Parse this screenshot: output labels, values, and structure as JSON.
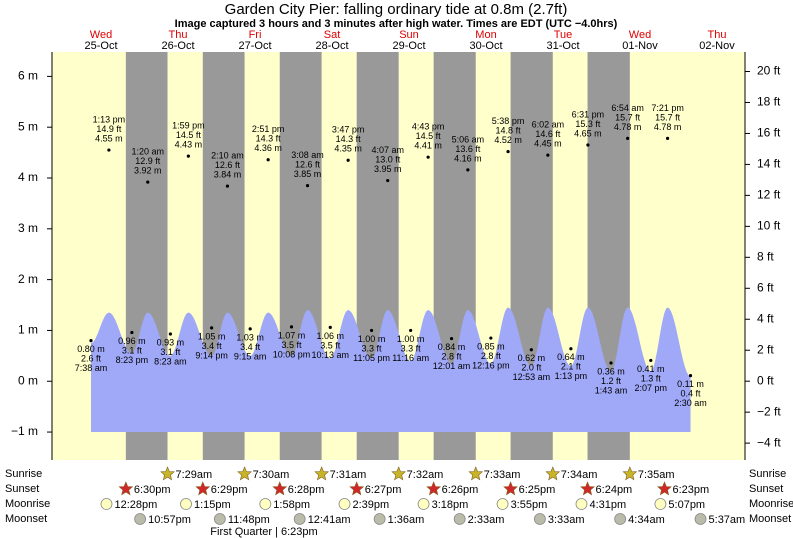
{
  "chart_data": {
    "type": "tide",
    "title": "Garden City Pier: falling  ordinary tide at 0.8m (2.7ft)",
    "subtitle": "Image captured 3 hours and 3 minutes after high water. Times are EDT (UTC −4.0hrs)",
    "days": {
      "weekdays": [
        "Wed",
        "Thu",
        "Fri",
        "Sat",
        "Sun",
        "Mon",
        "Tue",
        "Wed",
        "Thu"
      ],
      "dates": [
        "25-Oct",
        "26-Oct",
        "27-Oct",
        "28-Oct",
        "29-Oct",
        "30-Oct",
        "31-Oct",
        "01-Nov",
        "02-Nov"
      ]
    },
    "ylim": [
      -1.55,
      6.48
    ],
    "yticks": [
      {
        "value": 6,
        "label": "6 m"
      },
      {
        "value": 5,
        "label": "5 m"
      },
      {
        "value": 4,
        "label": "4 m"
      },
      {
        "value": 3,
        "label": "3 m"
      },
      {
        "value": 2,
        "label": "2 m"
      },
      {
        "value": 1,
        "label": "1 m"
      },
      {
        "value": 0,
        "label": "0 m"
      },
      {
        "value": -1,
        "label": "−1 m"
      }
    ],
    "y2lim": [
      -5.09,
      21.26
    ],
    "y2ticks": [
      {
        "value": 20,
        "label": "20 ft"
      },
      {
        "value": 18,
        "label": "18 ft"
      },
      {
        "value": 16,
        "label": "16 ft"
      },
      {
        "value": 14,
        "label": "14 ft"
      },
      {
        "value": 12,
        "label": "12 ft"
      },
      {
        "value": 10,
        "label": "10 ft"
      },
      {
        "value": 8,
        "label": "8 ft"
      },
      {
        "value": 6,
        "label": "6 ft"
      },
      {
        "value": 4,
        "label": "4 ft"
      },
      {
        "value": 2,
        "label": "2 ft"
      },
      {
        "value": 0,
        "label": "0 ft"
      },
      {
        "value": -2,
        "label": "−2 ft"
      },
      {
        "value": -4,
        "label": "−4 ft"
      }
    ],
    "day_color": "#ffffcc",
    "night_color": "#999999",
    "weekday_color": "#dd0000",
    "tides": {
      "times": [
        "7:38 am",
        "1:13 pm",
        "8:23 pm",
        "1:20 am",
        "8:23 am",
        "1:59 pm",
        "9:14 pm",
        "2:10 am",
        "9:15 am",
        "2:51 pm",
        "10:08 pm",
        "3:08 am",
        "10:13 am",
        "3:47 pm",
        "11:05 pm",
        "4:07 am",
        "11:16 am",
        "4:43 pm",
        "12:01 am",
        "5:06 am",
        "12:16 pm",
        "5:38 pm",
        "12:53 am",
        "6:02 am",
        "1:13 pm",
        "6:31 pm",
        "1:43 am",
        "6:54 am",
        "2:07 pm",
        "7:21 pm",
        "2:30 am"
      ],
      "values": [
        0.8,
        4.55,
        0.96,
        3.92,
        0.93,
        4.43,
        1.05,
        3.84,
        1.03,
        4.36,
        1.07,
        3.85,
        1.06,
        4.35,
        1.0,
        3.95,
        1.0,
        4.41,
        0.84,
        4.16,
        0.85,
        4.52,
        0.62,
        4.45,
        0.64,
        4.65,
        0.36,
        4.78,
        0.41,
        4.78,
        0.11
      ],
      "value_labels": [
        "0.80 m",
        "4.55 m",
        "0.96 m",
        "3.92 m",
        "0.93 m",
        "4.43 m",
        "1.05 m",
        "3.84 m",
        "1.03 m",
        "4.36 m",
        "1.07 m",
        "3.85 m",
        "1.06 m",
        "4.35 m",
        "1.00 m",
        "3.95 m",
        "1.00 m",
        "4.41 m",
        "0.84 m",
        "4.16 m",
        "0.85 m",
        "4.52 m",
        "0.62 m",
        "4.45 m",
        "0.64 m",
        "4.65 m",
        "0.36 m",
        "4.78 m",
        "0.41 m",
        "4.78 m",
        "0.11 m"
      ],
      "ft_labels": [
        "2.6 ft",
        "14.9 ft",
        "3.1 ft",
        "12.9 ft",
        "3.1 ft",
        "14.5 ft",
        "3.4 ft",
        "12.6 ft",
        "3.4 ft",
        "14.3 ft",
        "3.5 ft",
        "12.6 ft",
        "3.5 ft",
        "14.3 ft",
        "3.3 ft",
        "13.0 ft",
        "3.3 ft",
        "14.5 ft",
        "2.8 ft",
        "13.6 ft",
        "2.8 ft",
        "14.8 ft",
        "2.0 ft",
        "14.6 ft",
        "2.1 ft",
        "15.3 ft",
        "1.2 ft",
        "15.7 ft",
        "1.3 ft",
        "15.7 ft",
        "0.4 ft"
      ]
    },
    "curve": {
      "color": "#a0a8f8",
      "values": [
        0.75,
        1.35,
        0.55,
        1.35,
        0.5,
        1.35,
        0.5,
        1.35,
        0.5,
        1.35,
        0.5,
        1.4,
        0.45,
        1.4,
        0.45,
        1.4,
        0.4,
        1.4,
        0.35,
        1.4,
        0.35,
        1.45,
        0.3,
        1.45,
        0.3,
        1.45,
        0.2,
        1.45,
        0.2,
        1.45,
        0.1
      ]
    },
    "almanac": {
      "rows": [
        {
          "name": "Sunrise",
          "color": "#c8b428",
          "times": [
            null,
            "7:29am",
            "7:30am",
            "7:31am",
            "7:32am",
            "7:33am",
            "7:34am",
            "7:35am",
            null
          ]
        },
        {
          "name": "Sunset",
          "color": "#d02828",
          "times": [
            "6:30pm",
            "6:29pm",
            "6:28pm",
            "6:27pm",
            "6:26pm",
            "6:25pm",
            "6:24pm",
            "6:23pm",
            null
          ]
        },
        {
          "name": "Moonrise",
          "color": "#ffffc0",
          "times": [
            "12:28pm",
            "1:15pm",
            "1:58pm",
            "2:39pm",
            "3:18pm",
            "3:55pm",
            "4:31pm",
            "5:07pm",
            null
          ]
        },
        {
          "name": "Moonset",
          "color": "#bbbbaa",
          "times": [
            "10:57pm",
            "11:48pm",
            null,
            "12:41am",
            "1:36am",
            "2:33am",
            "3:33am",
            "4:34am",
            "5:37am"
          ]
        }
      ],
      "moon_phase": "First Quarter | 6:23pm"
    }
  }
}
